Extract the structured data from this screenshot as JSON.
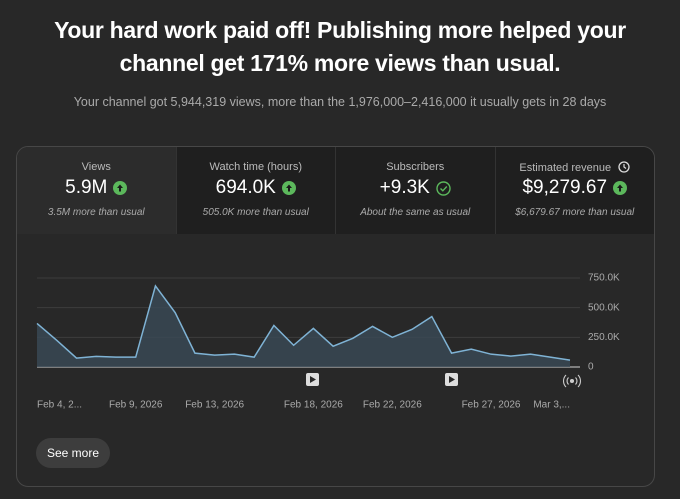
{
  "header": {
    "title": "Your hard work paid off! Publishing more helped your channel get 171% more views than usual.",
    "subtitle": "Your channel got 5,944,319 views, more than the 1,976,000–2,416,000 it usually gets in 28 days"
  },
  "metrics": [
    {
      "label": "Views",
      "value": "5.9M",
      "note": "3.5M more than usual"
    },
    {
      "label": "Watch time (hours)",
      "value": "694.0K",
      "note": "505.0K more than usual"
    },
    {
      "label": "Subscribers",
      "value": "+9.3K",
      "note": "About the same as usual"
    },
    {
      "label": "Estimated revenue",
      "value": "$9,279.67",
      "note": "$6,679.67 more than usual"
    }
  ],
  "chart_data": {
    "type": "area",
    "categories": [
      "Feb 4, 2...",
      null,
      null,
      null,
      null,
      "Feb 9, 2026",
      null,
      null,
      null,
      "Feb 13, 2026",
      null,
      null,
      null,
      null,
      "Feb 18, 2026",
      null,
      null,
      null,
      "Feb 22, 2026",
      null,
      null,
      null,
      null,
      "Feb 27, 2026",
      null,
      null,
      null,
      "Mar 3,..."
    ],
    "values": [
      367000,
      225000,
      75000,
      90000,
      83000,
      83000,
      683000,
      458000,
      117000,
      100000,
      108000,
      83000,
      350000,
      183000,
      325000,
      175000,
      242000,
      342000,
      250000,
      317000,
      425000,
      117000,
      150000,
      108000,
      92000,
      108000,
      83000,
      58000
    ],
    "color": "#7fb3d5",
    "ylim": [
      0,
      750000
    ],
    "yticks": [
      0,
      {
        "value": 250000,
        "label": "250.0K"
      },
      {
        "value": 500000,
        "label": "500.0K"
      },
      {
        "value": 750000,
        "label": "750.0K"
      }
    ],
    "grid": true
  },
  "button": "See more"
}
